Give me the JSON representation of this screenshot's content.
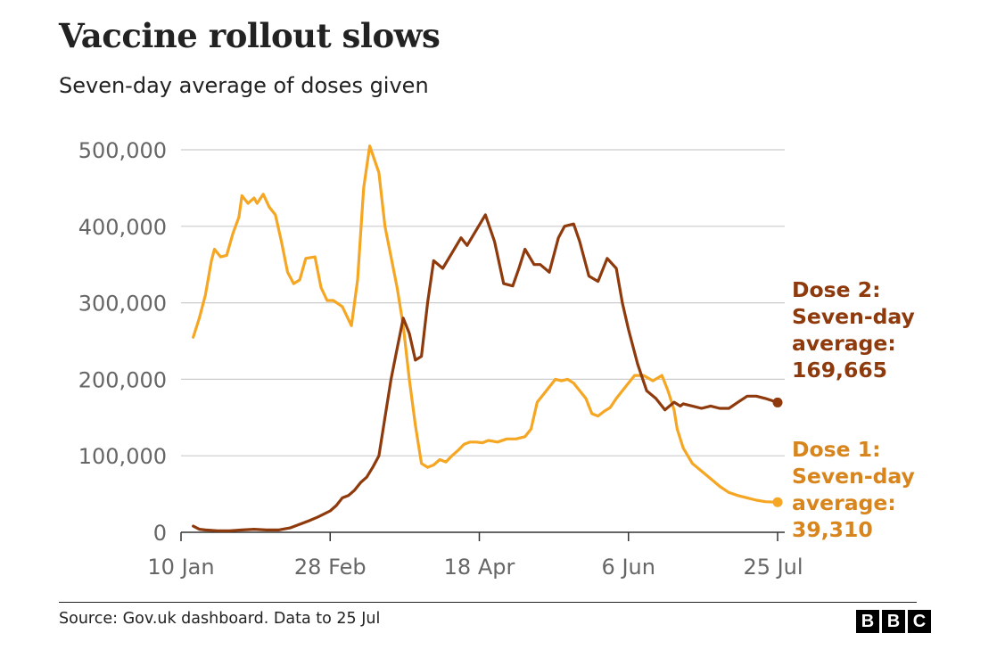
{
  "title": "Vaccine rollout slows",
  "subtitle": "Seven-day average of doses given",
  "source": "Source: Gov.uk dashboard. Data to 25 Jul",
  "logo": [
    "B",
    "B",
    "C"
  ],
  "callouts": {
    "dose2": [
      "Dose 2:",
      "Seven-day",
      "average:",
      "169,665"
    ],
    "dose1": [
      "Dose 1:",
      "Seven-day",
      "average:",
      "39,310"
    ]
  },
  "colors": {
    "dose1": "#f5a623",
    "dose2": "#8e3a0c",
    "dose1_text": "#d7851c",
    "grid": "#cccccc",
    "axis_text": "#666666"
  },
  "chart_data": {
    "type": "line",
    "title": "Vaccine rollout slows",
    "subtitle": "Seven-day average of doses given",
    "xlabel": "",
    "ylabel": "",
    "x_ticks": [
      "10 Jan",
      "28 Feb",
      "18 Apr",
      "6 Jun",
      "25 Jul"
    ],
    "y_ticks": [
      "0",
      "100,000",
      "200,000",
      "300,000",
      "400,000",
      "500,000"
    ],
    "ylim": [
      0,
      500000
    ],
    "grid": "horizontal",
    "legend": "direct labels at right end",
    "series": [
      {
        "name": "Dose 1",
        "x": [
          "2021-01-14",
          "2021-01-16",
          "2021-01-18",
          "2021-01-20",
          "2021-01-21",
          "2021-01-23",
          "2021-01-25",
          "2021-01-27",
          "2021-01-29",
          "2021-01-30",
          "2021-02-01",
          "2021-02-03",
          "2021-02-04",
          "2021-02-06",
          "2021-02-08",
          "2021-02-10",
          "2021-02-12",
          "2021-02-14",
          "2021-02-16",
          "2021-02-18",
          "2021-02-20",
          "2021-02-23",
          "2021-02-25",
          "2021-02-27",
          "2021-03-01",
          "2021-03-04",
          "2021-03-07",
          "2021-03-09",
          "2021-03-11",
          "2021-03-13",
          "2021-03-16",
          "2021-03-18",
          "2021-03-20",
          "2021-03-22",
          "2021-03-24",
          "2021-03-26",
          "2021-03-28",
          "2021-03-30",
          "2021-04-01",
          "2021-04-03",
          "2021-04-05",
          "2021-04-07",
          "2021-04-09",
          "2021-04-11",
          "2021-04-13",
          "2021-04-15",
          "2021-04-17",
          "2021-04-19",
          "2021-04-21",
          "2021-04-24",
          "2021-04-27",
          "2021-04-30",
          "2021-05-03",
          "2021-05-05",
          "2021-05-07",
          "2021-05-09",
          "2021-05-11",
          "2021-05-13",
          "2021-05-15",
          "2021-05-17",
          "2021-05-19",
          "2021-05-21",
          "2021-05-23",
          "2021-05-25",
          "2021-05-27",
          "2021-05-29",
          "2021-05-31",
          "2021-06-02",
          "2021-06-05",
          "2021-06-08",
          "2021-06-11",
          "2021-06-14",
          "2021-06-17",
          "2021-06-19",
          "2021-06-21",
          "2021-06-22",
          "2021-06-24",
          "2021-06-27",
          "2021-06-30",
          "2021-07-03",
          "2021-07-06",
          "2021-07-09",
          "2021-07-12",
          "2021-07-15",
          "2021-07-18",
          "2021-07-21",
          "2021-07-25"
        ],
        "values": [
          255000,
          280000,
          310000,
          355000,
          370000,
          360000,
          362000,
          390000,
          412000,
          440000,
          430000,
          437000,
          430000,
          442000,
          425000,
          415000,
          380000,
          340000,
          325000,
          330000,
          358000,
          360000,
          320000,
          303000,
          303000,
          295000,
          270000,
          330000,
          450000,
          505000,
          470000,
          400000,
          360000,
          320000,
          270000,
          200000,
          140000,
          90000,
          85000,
          88000,
          95000,
          92000,
          100000,
          107000,
          115000,
          118000,
          118000,
          117000,
          120000,
          118000,
          122000,
          122000,
          125000,
          135000,
          170000,
          180000,
          190000,
          200000,
          198000,
          200000,
          195000,
          185000,
          175000,
          155000,
          152000,
          158000,
          163000,
          175000,
          190000,
          205000,
          205000,
          198000,
          205000,
          185000,
          160000,
          135000,
          110000,
          90000,
          80000,
          70000,
          60000,
          52000,
          48000,
          45000,
          42000,
          40000,
          39310
        ]
      },
      {
        "name": "Dose 2",
        "x": [
          "2021-01-14",
          "2021-01-16",
          "2021-01-18",
          "2021-01-22",
          "2021-01-26",
          "2021-01-30",
          "2021-02-03",
          "2021-02-07",
          "2021-02-11",
          "2021-02-15",
          "2021-02-19",
          "2021-02-21",
          "2021-02-24",
          "2021-02-28",
          "2021-03-02",
          "2021-03-04",
          "2021-03-06",
          "2021-03-08",
          "2021-03-10",
          "2021-03-12",
          "2021-03-14",
          "2021-03-16",
          "2021-03-18",
          "2021-03-20",
          "2021-03-22",
          "2021-03-24",
          "2021-03-26",
          "2021-03-28",
          "2021-03-30",
          "2021-04-01",
          "2021-04-03",
          "2021-04-06",
          "2021-04-09",
          "2021-04-12",
          "2021-04-14",
          "2021-04-17",
          "2021-04-20",
          "2021-04-23",
          "2021-04-26",
          "2021-04-29",
          "2021-05-01",
          "2021-05-03",
          "2021-05-06",
          "2021-05-08",
          "2021-05-11",
          "2021-05-14",
          "2021-05-16",
          "2021-05-19",
          "2021-05-21",
          "2021-05-24",
          "2021-05-27",
          "2021-05-30",
          "2021-06-02",
          "2021-06-04",
          "2021-06-06",
          "2021-06-09",
          "2021-06-12",
          "2021-06-15",
          "2021-06-18",
          "2021-06-21",
          "2021-06-23",
          "2021-06-24",
          "2021-06-27",
          "2021-06-30",
          "2021-07-03",
          "2021-07-06",
          "2021-07-09",
          "2021-07-12",
          "2021-07-15",
          "2021-07-18",
          "2021-07-21",
          "2021-07-25"
        ],
        "values": [
          8000,
          4000,
          3000,
          2000,
          2000,
          3000,
          4000,
          3000,
          3000,
          6000,
          12000,
          15000,
          20000,
          28000,
          35000,
          45000,
          48000,
          55000,
          65000,
          72000,
          85000,
          100000,
          150000,
          200000,
          240000,
          280000,
          260000,
          225000,
          230000,
          300000,
          355000,
          345000,
          365000,
          385000,
          375000,
          395000,
          415000,
          380000,
          325000,
          322000,
          345000,
          370000,
          350000,
          350000,
          340000,
          385000,
          400000,
          403000,
          380000,
          335000,
          328000,
          358000,
          345000,
          300000,
          265000,
          220000,
          185000,
          175000,
          160000,
          170000,
          165000,
          168000,
          165000,
          162000,
          165000,
          162000,
          162000,
          170000,
          178000,
          178000,
          175000,
          169665
        ]
      }
    ]
  }
}
